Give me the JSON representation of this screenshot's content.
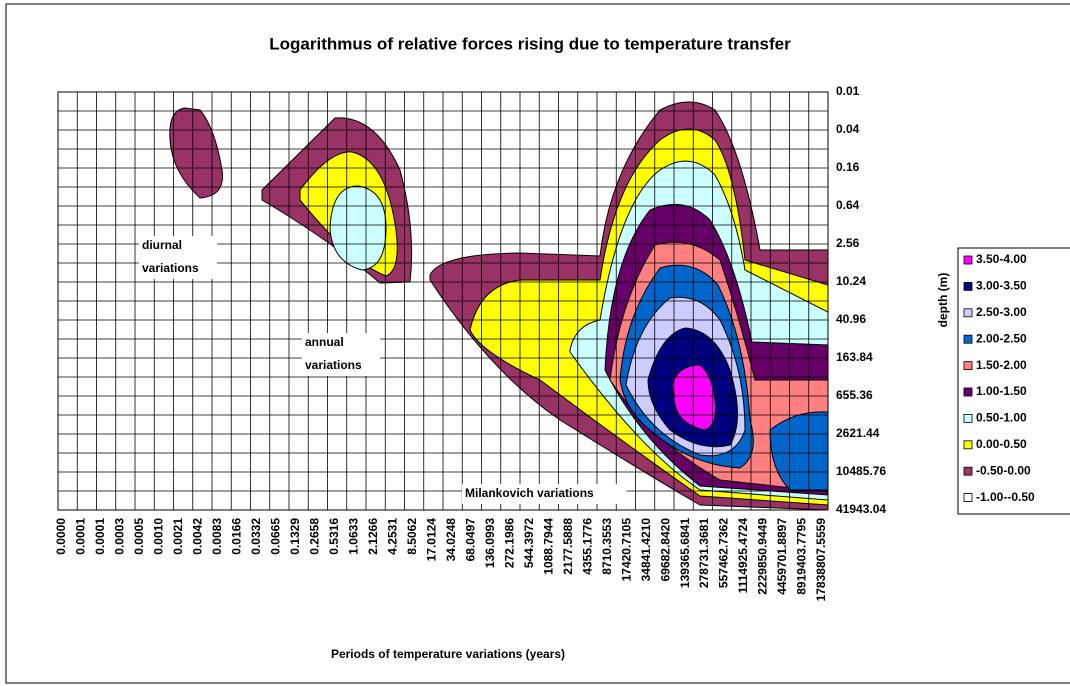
{
  "chart_data": {
    "type": "contour",
    "title": "Logarithmus of relative forces  rising due to temperature transfer",
    "x_label": "Periods of temperature variations (years)",
    "y_label": "depth (m)",
    "categories": [
      "0.0000",
      "0.0001",
      "0.0001",
      "0.0003",
      "0.0005",
      "0.0010",
      "0.0021",
      "0.0042",
      "0.0083",
      "0.0166",
      "0.0332",
      "0.0665",
      "0.1329",
      "0.2658",
      "0.5316",
      "1.0633",
      "2.1266",
      "4.2531",
      "8.5062",
      "17.0124",
      "34.0248",
      "68.0497",
      "136.0993",
      "272.1986",
      "544.3972",
      "1088.7944",
      "2177.5888",
      "4355.1776",
      "8710.3553",
      "17420.7105",
      "34841.4210",
      "69682.8420",
      "139365.6841",
      "278731.3681",
      "557462.7362",
      "1114925.4724",
      "2229850.9449",
      "4459701.8897",
      "8919403.7795",
      "17838807.5559"
    ],
    "y_categories": [
      "0.01",
      "0.04",
      "0.16",
      "0.64",
      "2.56",
      "10.24",
      "40.96",
      "163.84",
      "655.36",
      "2621.44",
      "10485.76",
      "41943.04"
    ],
    "series": [
      {
        "name": "3.50-4.00",
        "color": "#ff00ff"
      },
      {
        "name": "3.00-3.50",
        "color": "#000080"
      },
      {
        "name": "2.50-3.00",
        "color": "#ccccff"
      },
      {
        "name": "2.00-2.50",
        "color": "#0066cc"
      },
      {
        "name": "1.50-2.00",
        "color": "#ff8080"
      },
      {
        "name": "1.00-1.50",
        "color": "#660066"
      },
      {
        "name": "0.50-1.00",
        "color": "#ccffff"
      },
      {
        "name": "0.00-0.50",
        "color": "#ffff00"
      },
      {
        "name": "-0.50-0.00",
        "color": "#993366"
      },
      {
        "name": "-1.00--0.50",
        "color": "#ffffff"
      }
    ],
    "annotations": [
      [
        "diurnal",
        "variations"
      ],
      [
        "annual",
        "variations"
      ],
      [
        "Milankovich variations"
      ]
    ],
    "grid": true,
    "legend": "right"
  }
}
